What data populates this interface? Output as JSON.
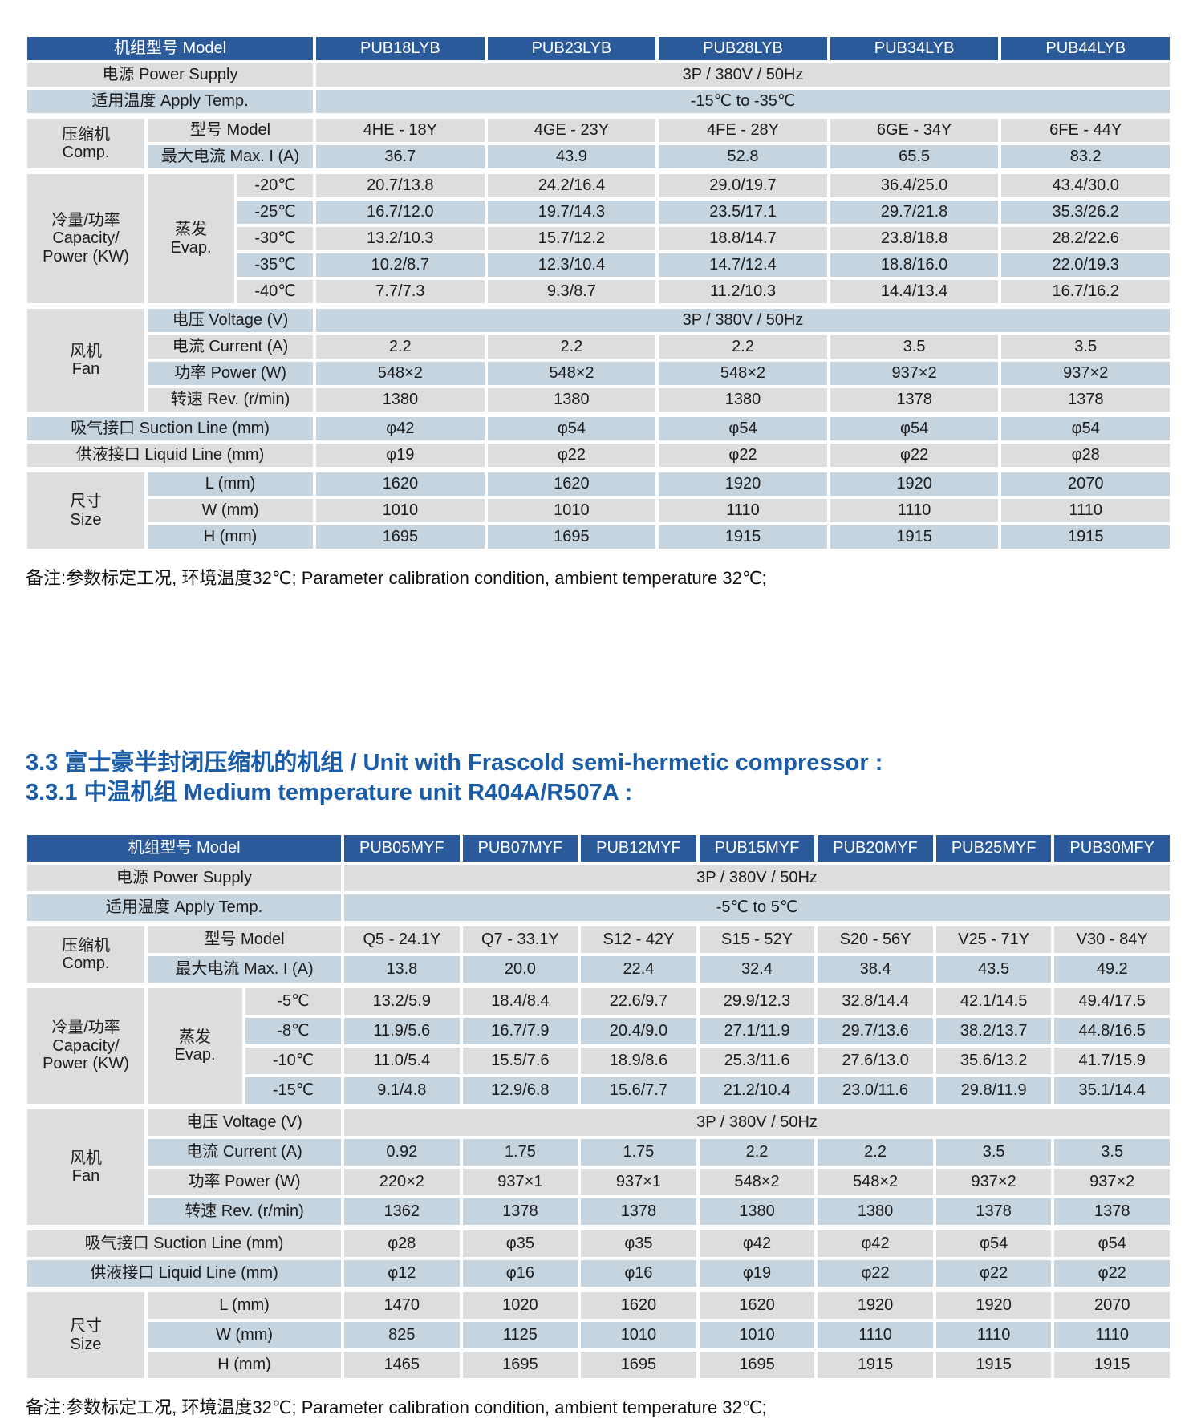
{
  "colors": {
    "header_bg": "#2b5a9b",
    "header_text": "#ffffff",
    "row_gray": "#dcddde",
    "row_blue": "#c6d4e0",
    "heading_text": "#1a5ca8",
    "body_text": "#1b1b1b"
  },
  "heading": {
    "line1": "3.3 富士豪半封闭压缩机的机组 / Unit with Frascold semi-hermetic compressor :",
    "line2": "3.3.1 中温机组 Medium temperature unit  R404A/R507A :"
  },
  "tables": [
    {
      "name": "low-temperature-unit-table",
      "header_label": "机组型号 Model",
      "label_col_widths": [
        150,
        112,
        98
      ],
      "models": [
        "PUB18LYB",
        "PUB23LYB",
        "PUB28LYB",
        "PUB34LYB",
        "PUB44LYB"
      ],
      "rows": [
        {
          "label": "电源 Power Supply",
          "label_span": 3,
          "span_value": "3P / 380V / 50Hz",
          "stripe": "gray"
        },
        {
          "label": "适用温度 Apply Temp.",
          "label_span": 3,
          "span_value": "-15℃ to -35℃",
          "stripe": "blue"
        },
        {
          "groups": [
            {
              "label": "压缩机\nComp.",
              "rowspan": 2
            }
          ],
          "label": "型号 Model",
          "label_span": 2,
          "values": [
            "4HE - 18Y",
            "4GE - 23Y",
            "4FE - 28Y",
            "6GE - 34Y",
            "6FE - 44Y"
          ],
          "stripe": "gray",
          "thick": true
        },
        {
          "label": "最大电流 Max. I (A)",
          "label_span": 2,
          "values": [
            "36.7",
            "43.9",
            "52.8",
            "65.5",
            "83.2"
          ],
          "stripe": "blue"
        },
        {
          "groups": [
            {
              "label": "冷量/功率\nCapacity/\nPower (KW)",
              "rowspan": 5
            },
            {
              "label": "蒸发\nEvap.",
              "rowspan": 5
            }
          ],
          "label": "-20℃",
          "label_span": 1,
          "values": [
            "20.7/13.8",
            "24.2/16.4",
            "29.0/19.7",
            "36.4/25.0",
            "43.4/30.0"
          ],
          "stripe": "gray",
          "thick": true
        },
        {
          "label": "-25℃",
          "label_span": 1,
          "values": [
            "16.7/12.0",
            "19.7/14.3",
            "23.5/17.1",
            "29.7/21.8",
            "35.3/26.2"
          ],
          "stripe": "blue"
        },
        {
          "label": "-30℃",
          "label_span": 1,
          "values": [
            "13.2/10.3",
            "15.7/12.2",
            "18.8/14.7",
            "23.8/18.8",
            "28.2/22.6"
          ],
          "stripe": "gray"
        },
        {
          "label": "-35℃",
          "label_span": 1,
          "values": [
            "10.2/8.7",
            "12.3/10.4",
            "14.7/12.4",
            "18.8/16.0",
            "22.0/19.3"
          ],
          "stripe": "blue"
        },
        {
          "label": "-40℃",
          "label_span": 1,
          "values": [
            "7.7/7.3",
            "9.3/8.7",
            "11.2/10.3",
            "14.4/13.4",
            "16.7/16.2"
          ],
          "stripe": "gray"
        },
        {
          "groups": [
            {
              "label": "风机\nFan",
              "rowspan": 4
            }
          ],
          "label": "电压 Voltage (V)",
          "label_span": 2,
          "span_value": "3P / 380V / 50Hz",
          "stripe": "blue",
          "thick": true
        },
        {
          "label": "电流 Current (A)",
          "label_span": 2,
          "values": [
            "2.2",
            "2.2",
            "2.2",
            "3.5",
            "3.5"
          ],
          "stripe": "gray"
        },
        {
          "label": "功率 Power (W)",
          "label_span": 2,
          "values": [
            "548×2",
            "548×2",
            "548×2",
            "937×2",
            "937×2"
          ],
          "stripe": "blue"
        },
        {
          "label": "转速 Rev. (r/min)",
          "label_span": 2,
          "values": [
            "1380",
            "1380",
            "1380",
            "1378",
            "1378"
          ],
          "stripe": "gray"
        },
        {
          "label": "吸气接口 Suction Line (mm)",
          "label_span": 3,
          "values": [
            "φ42",
            "φ54",
            "φ54",
            "φ54",
            "φ54"
          ],
          "stripe": "blue",
          "thick": true
        },
        {
          "label": "供液接口 Liquid Line (mm)",
          "label_span": 3,
          "values": [
            "φ19",
            "φ22",
            "φ22",
            "φ22",
            "φ28"
          ],
          "stripe": "gray"
        },
        {
          "groups": [
            {
              "label": "尺寸\nSize",
              "rowspan": 3
            }
          ],
          "label": "L (mm)",
          "label_span": 2,
          "values": [
            "1620",
            "1620",
            "1920",
            "1920",
            "2070"
          ],
          "stripe": "blue",
          "thick": true
        },
        {
          "label": "W (mm)",
          "label_span": 2,
          "values": [
            "1010",
            "1010",
            "1110",
            "1110",
            "1110"
          ],
          "stripe": "gray"
        },
        {
          "label": "H (mm)",
          "label_span": 2,
          "values": [
            "1695",
            "1695",
            "1915",
            "1915",
            "1915"
          ],
          "stripe": "blue"
        }
      ],
      "note": "备注:参数标定工况, 环境温度32℃; Parameter calibration condition, ambient temperature 32℃;"
    },
    {
      "name": "medium-temperature-unit-table",
      "header_label": "机组型号 Model",
      "label_col_widths": [
        150,
        122,
        123
      ],
      "models": [
        "PUB05MYF",
        "PUB07MYF",
        "PUB12MYF",
        "PUB15MYF",
        "PUB20MYF",
        "PUB25MYF",
        "PUB30MFY"
      ],
      "rows": [
        {
          "label": "电源 Power Supply",
          "label_span": 3,
          "span_value": "3P / 380V / 50Hz",
          "stripe": "gray"
        },
        {
          "label": "适用温度 Apply Temp.",
          "label_span": 3,
          "span_value": "-5℃ to 5℃",
          "stripe": "blue"
        },
        {
          "groups": [
            {
              "label": "压缩机\nComp.",
              "rowspan": 2
            }
          ],
          "label": "型号 Model",
          "label_span": 2,
          "values": [
            "Q5 - 24.1Y",
            "Q7 - 33.1Y",
            "S12 - 42Y",
            "S15 - 52Y",
            "S20 - 56Y",
            "V25 - 71Y",
            "V30 - 84Y"
          ],
          "stripe": "gray",
          "thick": true
        },
        {
          "label": "最大电流 Max. I (A)",
          "label_span": 2,
          "values": [
            "13.8",
            "20.0",
            "22.4",
            "32.4",
            "38.4",
            "43.5",
            "49.2"
          ],
          "stripe": "blue"
        },
        {
          "groups": [
            {
              "label": "冷量/功率\nCapacity/\nPower (KW)",
              "rowspan": 4
            },
            {
              "label": "蒸发\nEvap.",
              "rowspan": 4
            }
          ],
          "label": "-5℃",
          "label_span": 1,
          "values": [
            "13.2/5.9",
            "18.4/8.4",
            "22.6/9.7",
            "29.9/12.3",
            "32.8/14.4",
            "42.1/14.5",
            "49.4/17.5"
          ],
          "stripe": "gray",
          "thick": true
        },
        {
          "label": "-8℃",
          "label_span": 1,
          "values": [
            "11.9/5.6",
            "16.7/7.9",
            "20.4/9.0",
            "27.1/11.9",
            "29.7/13.6",
            "38.2/13.7",
            "44.8/16.5"
          ],
          "stripe": "blue"
        },
        {
          "label": "-10℃",
          "label_span": 1,
          "values": [
            "11.0/5.4",
            "15.5/7.6",
            "18.9/8.6",
            "25.3/11.6",
            "27.6/13.0",
            "35.6/13.2",
            "41.7/15.9"
          ],
          "stripe": "gray"
        },
        {
          "label": "-15℃",
          "label_span": 1,
          "values": [
            "9.1/4.8",
            "12.9/6.8",
            "15.6/7.7",
            "21.2/10.4",
            "23.0/11.6",
            "29.8/11.9",
            "35.1/14.4"
          ],
          "stripe": "blue"
        },
        {
          "groups": [
            {
              "label": "风机\nFan",
              "rowspan": 4
            }
          ],
          "label": "电压 Voltage (V)",
          "label_span": 2,
          "span_value": "3P / 380V / 50Hz",
          "stripe": "gray",
          "thick": true
        },
        {
          "label": "电流 Current (A)",
          "label_span": 2,
          "values": [
            "0.92",
            "1.75",
            "1.75",
            "2.2",
            "2.2",
            "3.5",
            "3.5"
          ],
          "stripe": "blue"
        },
        {
          "label": "功率 Power (W)",
          "label_span": 2,
          "values": [
            "220×2",
            "937×1",
            "937×1",
            "548×2",
            "548×2",
            "937×2",
            "937×2"
          ],
          "stripe": "gray"
        },
        {
          "label": "转速 Rev. (r/min)",
          "label_span": 2,
          "values": [
            "1362",
            "1378",
            "1378",
            "1380",
            "1380",
            "1378",
            "1378"
          ],
          "stripe": "blue"
        },
        {
          "label": "吸气接口 Suction Line (mm)",
          "label_span": 3,
          "values": [
            "φ28",
            "φ35",
            "φ35",
            "φ42",
            "φ42",
            "φ54",
            "φ54"
          ],
          "stripe": "gray",
          "thick": true
        },
        {
          "label": "供液接口 Liquid Line (mm)",
          "label_span": 3,
          "values": [
            "φ12",
            "φ16",
            "φ16",
            "φ19",
            "φ22",
            "φ22",
            "φ22"
          ],
          "stripe": "blue"
        },
        {
          "groups": [
            {
              "label": "尺寸\nSize",
              "rowspan": 3
            }
          ],
          "label": "L (mm)",
          "label_span": 2,
          "values": [
            "1470",
            "1020",
            "1620",
            "1620",
            "1920",
            "1920",
            "2070"
          ],
          "stripe": "gray",
          "thick": true
        },
        {
          "label": "W (mm)",
          "label_span": 2,
          "values": [
            "825",
            "1125",
            "1010",
            "1010",
            "1110",
            "1110",
            "1110"
          ],
          "stripe": "blue"
        },
        {
          "label": "H (mm)",
          "label_span": 2,
          "values": [
            "1465",
            "1695",
            "1695",
            "1695",
            "1915",
            "1915",
            "1915"
          ],
          "stripe": "gray"
        }
      ],
      "note": "备注:参数标定工况, 环境温度32℃; Parameter calibration condition, ambient temperature 32℃;"
    }
  ]
}
